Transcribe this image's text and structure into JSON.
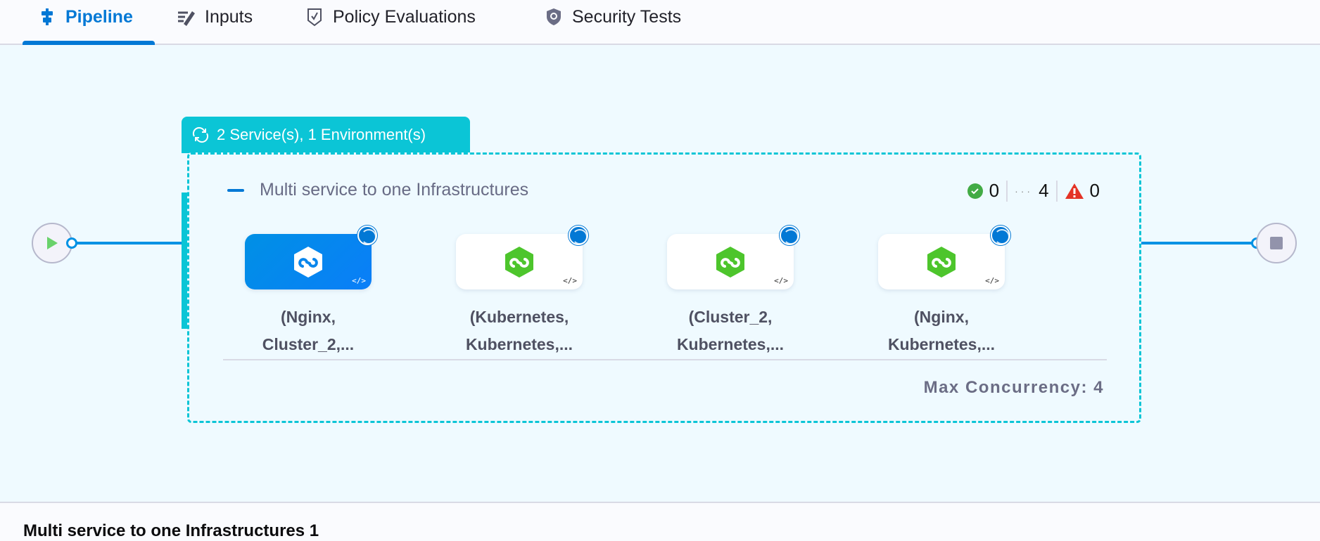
{
  "tabs": [
    {
      "label": "Pipeline",
      "icon": "pipeline-icon",
      "active": true
    },
    {
      "label": "Inputs",
      "icon": "inputs-icon"
    },
    {
      "label": "Policy Evaluations",
      "icon": "policy-shield-check-icon"
    },
    {
      "label": "Security Tests",
      "icon": "security-shield-icon"
    }
  ],
  "group": {
    "header": "2 Service(s), 1 Environment(s)",
    "title": "Multi service to one Infrastructures",
    "counts": {
      "success": "0",
      "running": "4",
      "failed": "0"
    },
    "nodes": [
      {
        "line1": "(Nginx,",
        "line2": "Cluster_2,...",
        "selected": true
      },
      {
        "line1": "(Kubernetes,",
        "line2": "Kubernetes,..."
      },
      {
        "line1": "(Cluster_2,",
        "line2": "Kubernetes,..."
      },
      {
        "line1": "(Nginx,",
        "line2": "Kubernetes,..."
      }
    ],
    "max_concurrency": "Max Concurrency: 4"
  },
  "bottom_title": "Multi service to one Infrastructures 1",
  "colors": {
    "accent": "#0278d5",
    "group": "#0bc5d6",
    "success": "#42ab45",
    "error": "#e43326",
    "service_green": "#4dc52c"
  }
}
